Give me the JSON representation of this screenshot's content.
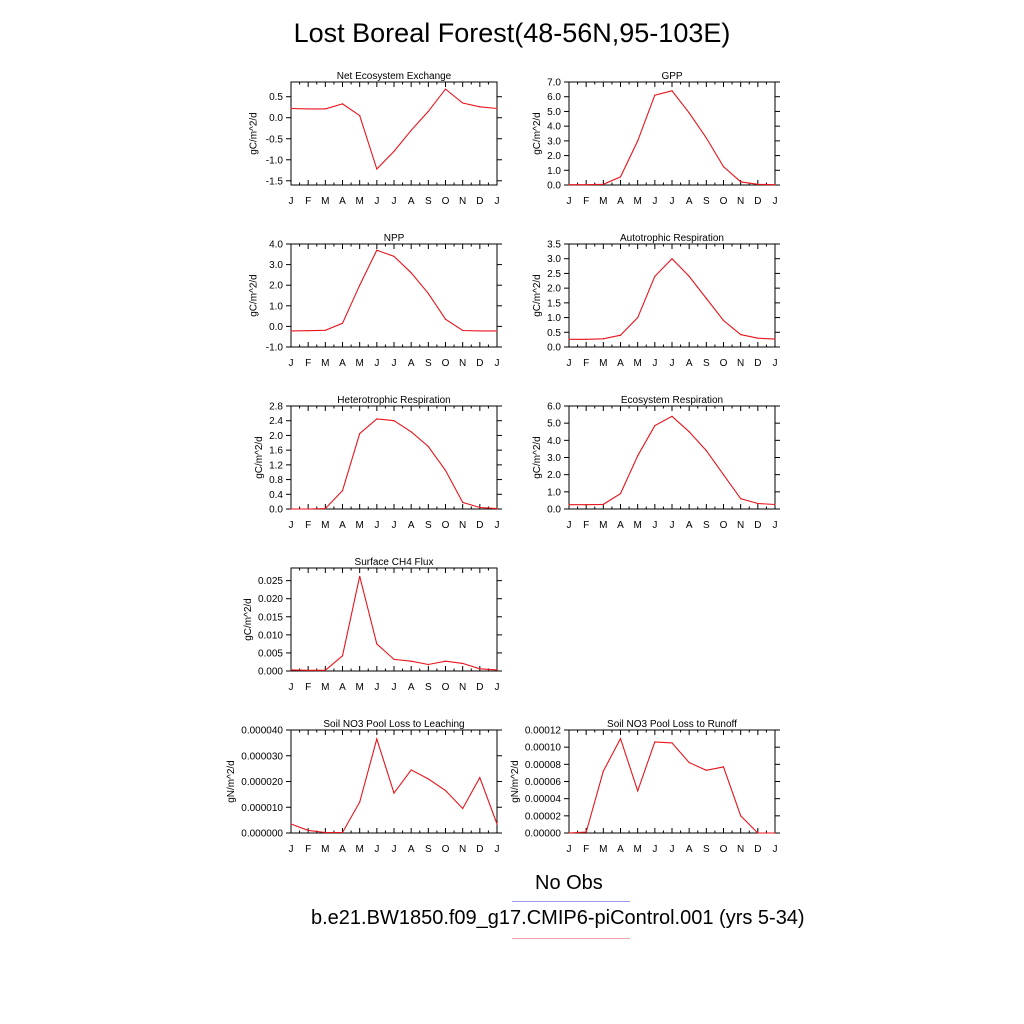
{
  "figure": {
    "title": "Lost Boreal Forest(48-56N,95-103E)",
    "line_color": "#e8141b",
    "legend": [
      {
        "label": "No Obs",
        "color": "#9a9aef"
      },
      {
        "label": "b.e21.BW1850.f09_g17.CMIP6-piControl.001 (yrs 5-34)",
        "color": "#f0a0a8"
      }
    ]
  },
  "chart_data": [
    {
      "type": "line",
      "title": "Net Ecosystem Exchange",
      "ylabel": "gC/m^2/d",
      "x": [
        "J",
        "F",
        "M",
        "A",
        "M",
        "J",
        "J",
        "A",
        "S",
        "O",
        "N",
        "D",
        "J"
      ],
      "ylim": [
        -1.6,
        0.85
      ],
      "yticks": [
        -1.5,
        -1.0,
        -0.5,
        0.0,
        0.5
      ],
      "ytick_labels": [
        "-1.5",
        "-1.0",
        "-0.5",
        "0.0",
        "0.5"
      ],
      "series": [
        {
          "values": [
            0.22,
            0.21,
            0.21,
            0.33,
            0.05,
            -1.22,
            -0.8,
            -0.3,
            0.15,
            0.68,
            0.35,
            0.26,
            0.22
          ]
        }
      ]
    },
    {
      "type": "line",
      "title": "GPP",
      "ylabel": "gC/m^2/d",
      "x": [
        "J",
        "F",
        "M",
        "A",
        "M",
        "J",
        "J",
        "A",
        "S",
        "O",
        "N",
        "D",
        "J"
      ],
      "ylim": [
        0.0,
        7.0
      ],
      "yticks": [
        0,
        1,
        2,
        3,
        4,
        5,
        6,
        7
      ],
      "ytick_labels": [
        "0.0",
        "1.0",
        "2.0",
        "3.0",
        "4.0",
        "5.0",
        "6.0",
        "7.0"
      ],
      "series": [
        {
          "values": [
            0.02,
            0.02,
            0.05,
            0.55,
            3.0,
            6.1,
            6.4,
            4.9,
            3.2,
            1.25,
            0.22,
            0.05,
            0.02
          ]
        }
      ]
    },
    {
      "type": "line",
      "title": "NPP",
      "ylabel": "gC/m^2/d",
      "x": [
        "J",
        "F",
        "M",
        "A",
        "M",
        "J",
        "J",
        "A",
        "S",
        "O",
        "N",
        "D",
        "J"
      ],
      "ylim": [
        -1.0,
        4.0
      ],
      "yticks": [
        -1,
        0,
        1,
        2,
        3,
        4
      ],
      "ytick_labels": [
        "-1.0",
        "0.0",
        "1.0",
        "2.0",
        "3.0",
        "4.0"
      ],
      "series": [
        {
          "values": [
            -0.22,
            -0.21,
            -0.19,
            0.15,
            2.0,
            3.7,
            3.4,
            2.6,
            1.6,
            0.35,
            -0.2,
            -0.22,
            -0.22
          ]
        }
      ]
    },
    {
      "type": "line",
      "title": "Autotrophic Respiration",
      "ylabel": "gC/m^2/d",
      "x": [
        "J",
        "F",
        "M",
        "A",
        "M",
        "J",
        "J",
        "A",
        "S",
        "O",
        "N",
        "D",
        "J"
      ],
      "ylim": [
        0.0,
        3.5
      ],
      "yticks": [
        0,
        0.5,
        1,
        1.5,
        2,
        2.5,
        3,
        3.5
      ],
      "ytick_labels": [
        "0.0",
        "0.5",
        "1.0",
        "1.5",
        "2.0",
        "2.5",
        "3.0",
        "3.5"
      ],
      "series": [
        {
          "values": [
            0.26,
            0.26,
            0.28,
            0.4,
            1.0,
            2.4,
            3.0,
            2.4,
            1.65,
            0.9,
            0.42,
            0.3,
            0.27
          ]
        }
      ]
    },
    {
      "type": "line",
      "title": "Heterotrophic Respiration",
      "ylabel": "gC/m^2/d",
      "x": [
        "J",
        "F",
        "M",
        "A",
        "M",
        "J",
        "J",
        "A",
        "S",
        "O",
        "N",
        "D",
        "J"
      ],
      "ylim": [
        0.0,
        2.8
      ],
      "yticks": [
        0,
        0.4,
        0.8,
        1.2,
        1.6,
        2.0,
        2.4,
        2.8
      ],
      "ytick_labels": [
        "0.0",
        "0.4",
        "0.8",
        "1.2",
        "1.6",
        "2.0",
        "2.4",
        "2.8"
      ],
      "series": [
        {
          "values": [
            0.0,
            0.0,
            0.01,
            0.5,
            2.05,
            2.45,
            2.4,
            2.1,
            1.7,
            1.05,
            0.18,
            0.04,
            0.01
          ]
        }
      ]
    },
    {
      "type": "line",
      "title": "Ecosystem Respiration",
      "ylabel": "gC/m^2/d",
      "x": [
        "J",
        "F",
        "M",
        "A",
        "M",
        "J",
        "J",
        "A",
        "S",
        "O",
        "N",
        "D",
        "J"
      ],
      "ylim": [
        0.0,
        6.0
      ],
      "yticks": [
        0,
        1,
        2,
        3,
        4,
        5,
        6
      ],
      "ytick_labels": [
        "0.0",
        "1.0",
        "2.0",
        "3.0",
        "4.0",
        "5.0",
        "6.0"
      ],
      "series": [
        {
          "values": [
            0.25,
            0.25,
            0.27,
            0.9,
            3.1,
            4.85,
            5.4,
            4.5,
            3.4,
            2.0,
            0.6,
            0.32,
            0.26
          ]
        }
      ]
    },
    {
      "type": "line",
      "title": "Surface CH4 Flux",
      "ylabel": "gC/m^2/d",
      "x": [
        "J",
        "F",
        "M",
        "A",
        "M",
        "J",
        "J",
        "A",
        "S",
        "O",
        "N",
        "D",
        "J"
      ],
      "ylim": [
        0.0,
        0.0285
      ],
      "yticks": [
        0,
        0.005,
        0.01,
        0.015,
        0.02,
        0.025
      ],
      "ytick_labels": [
        "0.000",
        "0.005",
        "0.010",
        "0.015",
        "0.020",
        "0.025"
      ],
      "series": [
        {
          "values": [
            0.0003,
            0.0002,
            0.0002,
            0.0042,
            0.0262,
            0.0075,
            0.0032,
            0.0027,
            0.0018,
            0.0027,
            0.0021,
            0.0006,
            0.0003
          ]
        }
      ]
    },
    {
      "type": "line",
      "title": "Soil NO3 Pool Loss to Leaching",
      "ylabel": "gN/m^2/d",
      "x": [
        "J",
        "F",
        "M",
        "A",
        "M",
        "J",
        "J",
        "A",
        "S",
        "O",
        "N",
        "D",
        "J"
      ],
      "ylim": [
        0.0,
        4e-05
      ],
      "yticks": [
        0,
        1e-05,
        2e-05,
        3e-05,
        4e-05
      ],
      "ytick_labels": [
        "0.000000",
        "0.000010",
        "0.000020",
        "0.000030",
        "0.000040"
      ],
      "series": [
        {
          "values": [
            3.5e-06,
            1e-06,
            2e-07,
            2e-07,
            1.2e-05,
            3.65e-05,
            1.55e-05,
            2.45e-05,
            2.1e-05,
            1.65e-05,
            9.5e-06,
            2.15e-05,
            3.5e-06
          ]
        }
      ]
    },
    {
      "type": "line",
      "title": "Soil NO3 Pool Loss to Runoff",
      "ylabel": "gN/m^2/d",
      "x": [
        "J",
        "F",
        "M",
        "A",
        "M",
        "J",
        "J",
        "A",
        "S",
        "O",
        "N",
        "D",
        "J"
      ],
      "ylim": [
        0.0,
        0.00012
      ],
      "yticks": [
        0,
        2e-05,
        4e-05,
        6e-05,
        8e-05,
        0.0001,
        0.00012
      ],
      "ytick_labels": [
        "0.00000",
        "0.00002",
        "0.00004",
        "0.00006",
        "0.00008",
        "0.00010",
        "0.00012"
      ],
      "series": [
        {
          "values": [
            0.0,
            1e-06,
            7.2e-05,
            0.00011,
            4.9e-05,
            0.000106,
            0.000105,
            8.2e-05,
            7.3e-05,
            7.7e-05,
            2e-05,
            0.0,
            0.0
          ]
        }
      ]
    }
  ]
}
